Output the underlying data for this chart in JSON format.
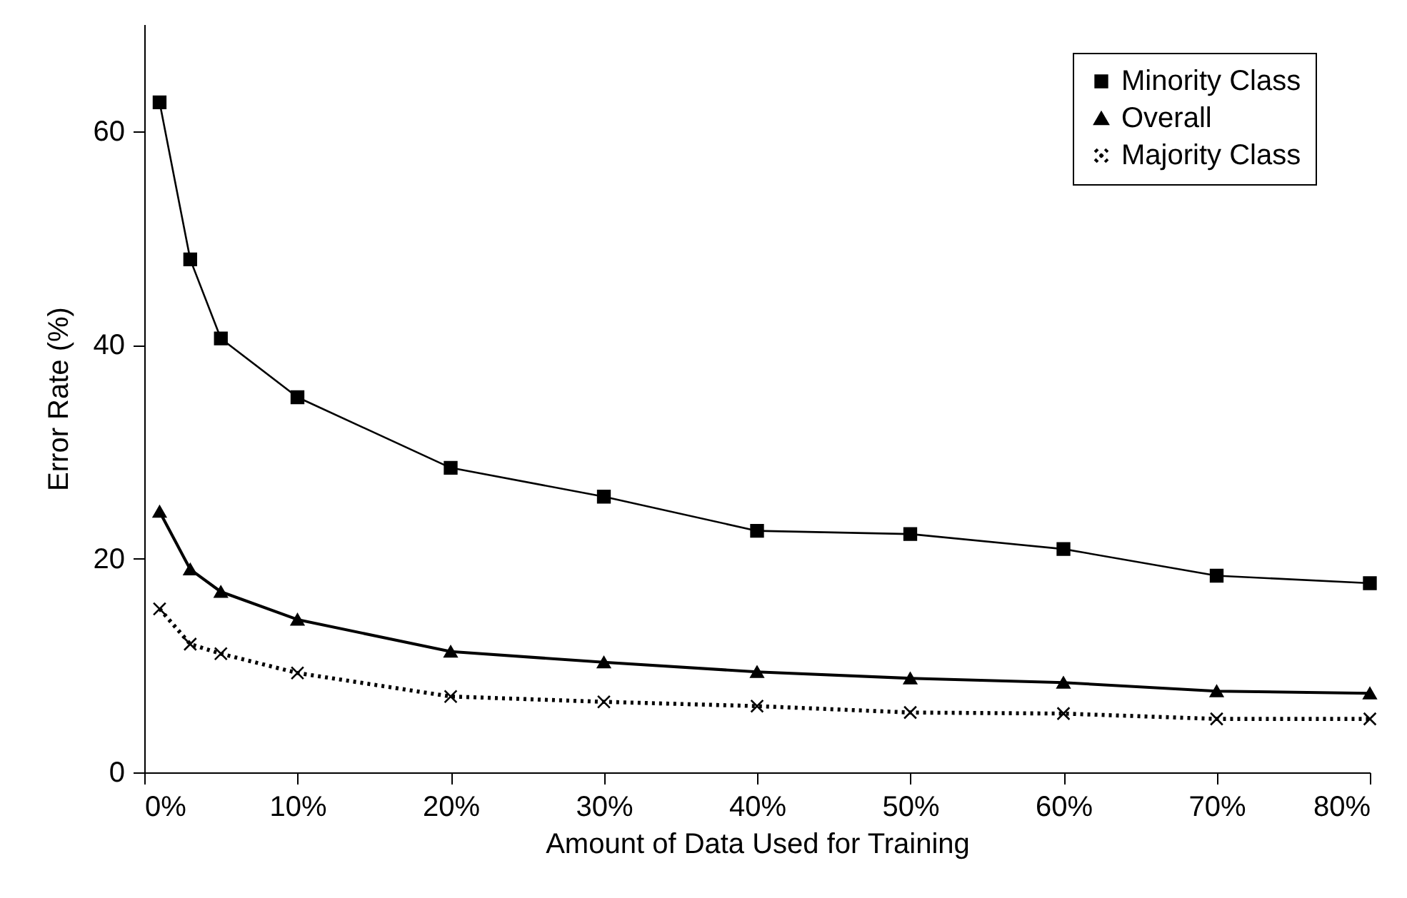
{
  "chart_data": {
    "type": "line",
    "xlabel": "Amount of Data Used for Training",
    "ylabel": "Error Rate (%)",
    "x": [
      1,
      3,
      5,
      10,
      20,
      30,
      40,
      50,
      60,
      70,
      80
    ],
    "xlim": [
      0,
      80
    ],
    "xticks": [
      {
        "value": 0,
        "label": "0%"
      },
      {
        "value": 10,
        "label": "10%"
      },
      {
        "value": 20,
        "label": "20%"
      },
      {
        "value": 30,
        "label": "30%"
      },
      {
        "value": 40,
        "label": "40%"
      },
      {
        "value": 50,
        "label": "50%"
      },
      {
        "value": 60,
        "label": "60%"
      },
      {
        "value": 70,
        "label": "70%"
      },
      {
        "value": 80,
        "label": "80%"
      }
    ],
    "ylim": [
      0,
      70
    ],
    "yticks": [
      0,
      20,
      40,
      60
    ],
    "grid": false,
    "legend": "top right",
    "series": [
      {
        "name": "Minority Class",
        "color": "#000000",
        "marker": "square",
        "line_style": "solid",
        "values": [
          62.7,
          48,
          40.6,
          35.1,
          28.5,
          25.8,
          22.6,
          22.3,
          20.9,
          18.4,
          17.7
        ]
      },
      {
        "name": "Overall",
        "color": "#000000",
        "marker": "triangle",
        "line_style": "solid",
        "values": [
          24.4,
          19,
          16.9,
          14.3,
          11.3,
          10.3,
          9.4,
          8.8,
          8.4,
          7.6,
          7.4
        ]
      },
      {
        "name": "Majority Class",
        "color": "#000000",
        "marker": "cross",
        "line_style": "dotted",
        "values": [
          15.3,
          12,
          11.1,
          9.3,
          7.1,
          6.6,
          6.2,
          5.6,
          5.5,
          5.0,
          5.0
        ]
      }
    ]
  }
}
